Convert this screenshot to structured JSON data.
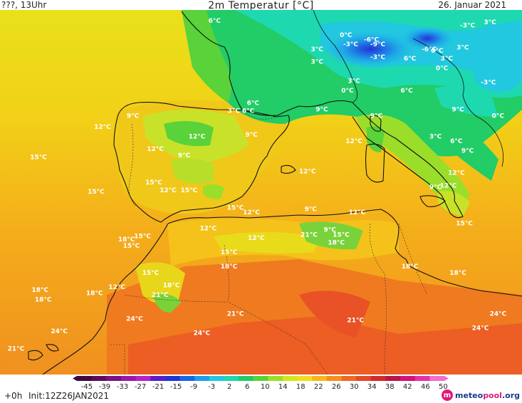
{
  "header": {
    "top_left": "???, 13Uhr",
    "title": "2m Temperatur [°C]",
    "date": "26. Januar 2021"
  },
  "footer": {
    "forecast_step": "+0h",
    "init": "Init:12Z26JAN2021"
  },
  "logo": {
    "part1": "meteo",
    "part2": "pool",
    "suffix": ".org"
  },
  "legend": {
    "ticks": [
      "-45",
      "-39",
      "-33",
      "-27",
      "-21",
      "-15",
      "-9",
      "-3",
      "2",
      "6",
      "10",
      "14",
      "18",
      "22",
      "26",
      "30",
      "34",
      "38",
      "42",
      "46",
      "50"
    ],
    "colors": [
      "#3d0a3d",
      "#5a0d5c",
      "#7b1182",
      "#9a18a8",
      "#b722c8",
      "#5a1ec8",
      "#2233d8",
      "#1a66e6",
      "#1e9ee8",
      "#22c8e0",
      "#1ed8b0",
      "#22cc66",
      "#5ad23a",
      "#9ade2a",
      "#d2e81a",
      "#f2de18",
      "#f6b81a",
      "#f48e1e",
      "#ee6a22",
      "#e44a26",
      "#d42a2a",
      "#b8164a",
      "#d2127a",
      "#e630a8",
      "#f070cc"
    ]
  },
  "temperature_labels": [
    {
      "label": "6°C",
      "lon": -0.4,
      "lat": 49.1
    },
    {
      "label": "0°C",
      "lon": 7.8,
      "lat": 48.2
    },
    {
      "label": "-6°C",
      "lon": 9.4,
      "lat": 47.9
    },
    {
      "label": "-9°C",
      "lon": 9.8,
      "lat": 47.6
    },
    {
      "label": "-3°C",
      "lon": 8.1,
      "lat": 47.6
    },
    {
      "label": "-3°C",
      "lon": 15.4,
      "lat": 48.8
    },
    {
      "label": "3°C",
      "lon": 16.8,
      "lat": 49.0
    },
    {
      "label": "-6°C",
      "lon": 13.0,
      "lat": 47.3
    },
    {
      "label": "3°C",
      "lon": 6.0,
      "lat": 47.3
    },
    {
      "label": "-3°C",
      "lon": 9.8,
      "lat": 46.8
    },
    {
      "label": "6°C",
      "lon": 11.8,
      "lat": 46.7
    },
    {
      "label": "0°C",
      "lon": 13.5,
      "lat": 47.2
    },
    {
      "label": "3°C",
      "lon": 14.1,
      "lat": 46.7
    },
    {
      "label": "3°C",
      "lon": 15.1,
      "lat": 47.4
    },
    {
      "label": "3°C",
      "lon": 6.0,
      "lat": 46.5
    },
    {
      "label": "0°C",
      "lon": 13.8,
      "lat": 46.1
    },
    {
      "label": "-3°C",
      "lon": 16.7,
      "lat": 45.2
    },
    {
      "label": "3°C",
      "lon": 8.3,
      "lat": 45.3
    },
    {
      "label": "0°C",
      "lon": 7.9,
      "lat": 44.7
    },
    {
      "label": "6°C",
      "lon": 11.6,
      "lat": 44.7
    },
    {
      "label": "6°C",
      "lon": 2.0,
      "lat": 43.9
    },
    {
      "label": "3°C",
      "lon": 0.8,
      "lat": 43.4
    },
    {
      "label": "6°C",
      "lon": 1.7,
      "lat": 43.4
    },
    {
      "label": "9°C",
      "lon": 6.3,
      "lat": 43.5
    },
    {
      "label": "9°C",
      "lon": 9.7,
      "lat": 43.1
    },
    {
      "label": "9°C",
      "lon": 14.8,
      "lat": 43.5
    },
    {
      "label": "0°C",
      "lon": 17.3,
      "lat": 43.1
    },
    {
      "label": "9°C",
      "lon": -5.5,
      "lat": 43.1
    },
    {
      "label": "12°C",
      "lon": -7.4,
      "lat": 42.4
    },
    {
      "label": "9°C",
      "lon": 1.9,
      "lat": 41.9
    },
    {
      "label": "12°C",
      "lon": -1.5,
      "lat": 41.8
    },
    {
      "label": "3°C",
      "lon": 13.4,
      "lat": 41.8
    },
    {
      "label": "6°C",
      "lon": 14.7,
      "lat": 41.5
    },
    {
      "label": "12°C",
      "lon": 8.3,
      "lat": 41.5
    },
    {
      "label": "12°C",
      "lon": -4.1,
      "lat": 41.0
    },
    {
      "label": "9°C",
      "lon": -2.3,
      "lat": 40.6
    },
    {
      "label": "9°C",
      "lon": 15.4,
      "lat": 40.9
    },
    {
      "label": "15°C",
      "lon": -11.4,
      "lat": 40.5
    },
    {
      "label": "12°C",
      "lon": 5.4,
      "lat": 39.6
    },
    {
      "label": "12°C",
      "lon": 14.7,
      "lat": 39.5
    },
    {
      "label": "15°C",
      "lon": -4.2,
      "lat": 38.9
    },
    {
      "label": "9°C",
      "lon": 13.4,
      "lat": 38.6
    },
    {
      "label": "12°C",
      "lon": 14.2,
      "lat": 38.7
    },
    {
      "label": "12°C",
      "lon": -3.3,
      "lat": 38.4
    },
    {
      "label": "15°C",
      "lon": -2.0,
      "lat": 38.4
    },
    {
      "label": "15°C",
      "lon": -7.8,
      "lat": 38.3
    },
    {
      "label": "15°C",
      "lon": 0.9,
      "lat": 37.3
    },
    {
      "label": "12°C",
      "lon": 1.9,
      "lat": 37.0
    },
    {
      "label": "9°C",
      "lon": 5.6,
      "lat": 37.2
    },
    {
      "label": "12°C",
      "lon": 8.5,
      "lat": 37.0
    },
    {
      "label": "15°C",
      "lon": 15.2,
      "lat": 36.3
    },
    {
      "label": "12°C",
      "lon": -0.8,
      "lat": 36.0
    },
    {
      "label": "9°C",
      "lon": 6.8,
      "lat": 35.9
    },
    {
      "label": "21°C",
      "lon": 5.5,
      "lat": 35.6
    },
    {
      "label": "15°C",
      "lon": 7.5,
      "lat": 35.6
    },
    {
      "label": "12°C",
      "lon": 2.2,
      "lat": 35.4
    },
    {
      "label": "15°C",
      "lon": -4.9,
      "lat": 35.5
    },
    {
      "label": "18°C",
      "lon": -5.9,
      "lat": 35.3
    },
    {
      "label": "15°C",
      "lon": -5.6,
      "lat": 34.9
    },
    {
      "label": "18°C",
      "lon": 7.2,
      "lat": 35.1
    },
    {
      "label": "15°C",
      "lon": 0.5,
      "lat": 34.5
    },
    {
      "label": "18°C",
      "lon": 0.5,
      "lat": 33.6
    },
    {
      "label": "15°C",
      "lon": -4.4,
      "lat": 33.2
    },
    {
      "label": "18°C",
      "lon": 11.8,
      "lat": 33.6
    },
    {
      "label": "18°C",
      "lon": 14.8,
      "lat": 33.2
    },
    {
      "label": "18°C",
      "lon": -3.1,
      "lat": 32.4
    },
    {
      "label": "12°C",
      "lon": -6.5,
      "lat": 32.3
    },
    {
      "label": "18°C",
      "lon": -11.3,
      "lat": 32.1
    },
    {
      "label": "18°C",
      "lon": -7.9,
      "lat": 31.9
    },
    {
      "label": "21°C",
      "lon": -3.8,
      "lat": 31.8
    },
    {
      "label": "18°C",
      "lon": -11.1,
      "lat": 31.5
    },
    {
      "label": "21°C",
      "lon": 0.9,
      "lat": 30.6
    },
    {
      "label": "24°C",
      "lon": -5.4,
      "lat": 30.3
    },
    {
      "label": "21°C",
      "lon": 8.4,
      "lat": 30.2
    },
    {
      "label": "24°C",
      "lon": 17.3,
      "lat": 30.6
    },
    {
      "label": "24°C",
      "lon": -10.1,
      "lat": 29.5
    },
    {
      "label": "24°C",
      "lon": -1.2,
      "lat": 29.4
    },
    {
      "label": "24°C",
      "lon": 16.2,
      "lat": 29.7
    },
    {
      "label": "21°C",
      "lon": -12.8,
      "lat": 28.4
    }
  ]
}
